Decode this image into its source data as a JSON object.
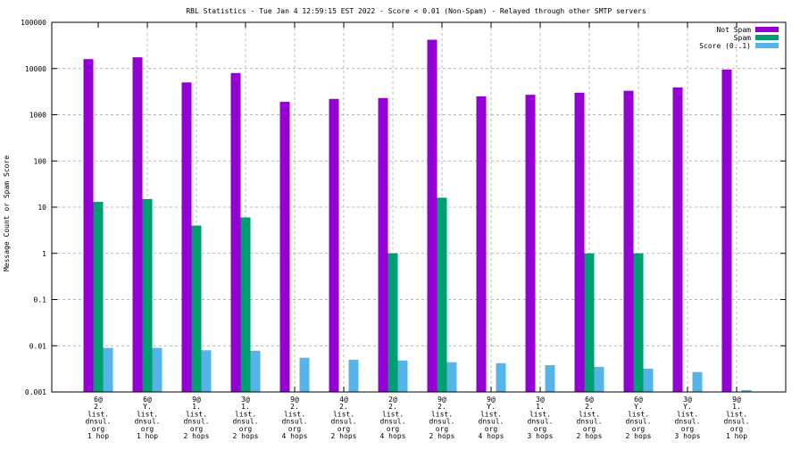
{
  "chart_data": {
    "type": "bar",
    "title": "RBL Statistics - Tue Jan  4 12:59:15 EST 2022 - Score < 0.01 (Non-Spam) - Relayed through other SMTP servers",
    "ylabel": "Message Count or Spam Score",
    "xlabel": "",
    "yscale": "log",
    "ylim": [
      0.001,
      100000
    ],
    "yticks": [
      "100000",
      "10000",
      "1000",
      "100",
      "10",
      "1",
      "0.1",
      "0.01",
      "0.001"
    ],
    "grid": true,
    "legend_position": "top-right",
    "categories": [
      [
        "6@",
        "2.",
        "list.",
        "dnsul.",
        "org",
        "1 hop"
      ],
      [
        "6@",
        "Y.",
        "list.",
        "dnsul.",
        "org",
        "1 hop"
      ],
      [
        "9@",
        "1.",
        "list.",
        "dnsul.",
        "org",
        "2 hops"
      ],
      [
        "3@",
        "1.",
        "list.",
        "dnsul.",
        "org",
        "2 hops"
      ],
      [
        "9@",
        "2.",
        "list.",
        "dnsul.",
        "org",
        "4 hops"
      ],
      [
        "4@",
        "2.",
        "list.",
        "dnsul.",
        "org",
        "2 hops"
      ],
      [
        "2@",
        "2.",
        "list.",
        "dnsul.",
        "org",
        "4 hops"
      ],
      [
        "9@",
        "2.",
        "list.",
        "dnsul.",
        "org",
        "2 hops"
      ],
      [
        "9@",
        "Y.",
        "list.",
        "dnsul.",
        "org",
        "4 hops"
      ],
      [
        "3@",
        "1.",
        "list.",
        "dnsul.",
        "org",
        "3 hops"
      ],
      [
        "6@",
        "2.",
        "list.",
        "dnsul.",
        "org",
        "2 hops"
      ],
      [
        "6@",
        "Y.",
        "list.",
        "dnsul.",
        "org",
        "2 hops"
      ],
      [
        "3@",
        "Y.",
        "list.",
        "dnsul.",
        "org",
        "3 hops"
      ],
      [
        "9@",
        "1.",
        "list.",
        "dnsul.",
        "org",
        "1 hop"
      ]
    ],
    "series": [
      {
        "name": "Not Spam",
        "color": "#9400d3",
        "values": [
          16000,
          17500,
          5000,
          8000,
          1900,
          2200,
          2300,
          42000,
          2500,
          2700,
          3000,
          3300,
          3900,
          9500
        ]
      },
      {
        "name": "Spam",
        "color": "#009e73",
        "values": [
          13,
          15,
          4,
          6,
          null,
          null,
          1,
          16,
          null,
          null,
          1,
          1,
          null,
          null
        ]
      },
      {
        "name": "Score (0..1)",
        "color": "#56b4e9",
        "values": [
          0.009,
          0.009,
          0.008,
          0.0078,
          0.0055,
          0.005,
          0.0048,
          0.0044,
          0.0042,
          0.0038,
          0.0035,
          0.0032,
          0.0027,
          0.0011
        ]
      }
    ]
  }
}
